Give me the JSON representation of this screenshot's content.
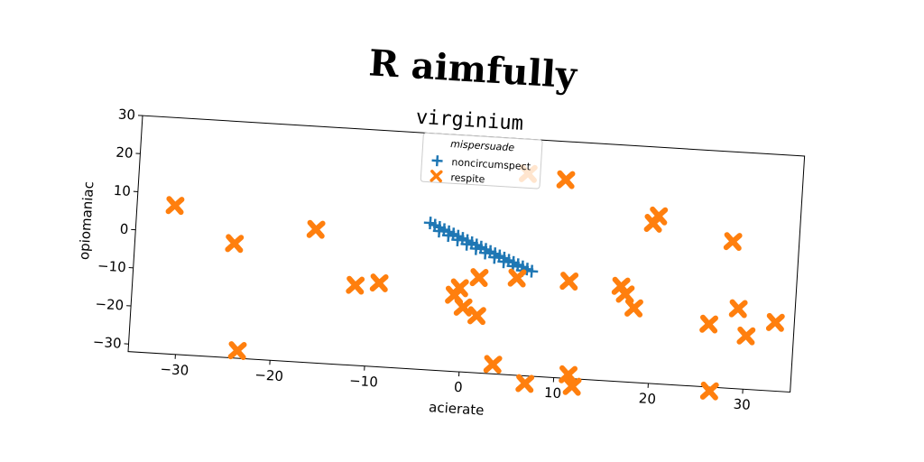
{
  "chart_data": {
    "type": "scatter",
    "suptitle": "R aimfully",
    "title": "virginium",
    "xlabel": "acierate",
    "ylabel": "opiomaniac",
    "xlim": [
      -35,
      35
    ],
    "ylim": [
      -32,
      30
    ],
    "xticks": [
      -30,
      -20,
      -10,
      0,
      10,
      20,
      30
    ],
    "yticks": [
      -30,
      -20,
      -10,
      0,
      10,
      20,
      30
    ],
    "grid": false,
    "legend": {
      "title": "mispersuade",
      "placement": "upper center"
    },
    "series": [
      {
        "name": "noncircumspect",
        "marker": "plus",
        "color": "#1f77b4",
        "x": [
          -4.0,
          -3.5,
          -3.0,
          -2.5,
          -2.0,
          -1.5,
          -1.0,
          -0.5,
          0.0,
          0.5,
          1.0,
          1.5,
          2.0,
          2.5,
          3.0,
          3.5,
          4.0,
          4.5,
          5.0,
          5.5,
          6.0,
          6.5,
          7.0,
          -3.0,
          -2.0,
          -1.0,
          0.0,
          1.0,
          2.0,
          3.0,
          4.0,
          5.0,
          6.0
        ],
        "y": [
          6.5,
          6.0,
          5.5,
          5.0,
          4.5,
          4.0,
          3.5,
          3.0,
          2.5,
          2.0,
          1.5,
          1.0,
          0.5,
          0.0,
          -0.5,
          -1.0,
          -1.5,
          -2.0,
          -2.5,
          -3.0,
          -3.5,
          -4.0,
          -4.5,
          4.5,
          3.5,
          2.5,
          1.5,
          0.5,
          -0.5,
          -1.5,
          -2.5,
          -3.5,
          -4.5
        ]
      },
      {
        "name": "respite",
        "marker": "X",
        "color": "#ff7f0e",
        "x": [
          -31,
          -24.5,
          -23.5,
          -16,
          -11.5,
          -9,
          -1,
          -0.5,
          0,
          1.5,
          1.5,
          3.5,
          5.5,
          6,
          7,
          10,
          11,
          11.5,
          12,
          16.5,
          17,
          18,
          19.5,
          20,
          26,
          26.5,
          28,
          29,
          30,
          33
        ],
        "y": [
          7,
          -2,
          -30,
          3,
          -11,
          -10,
          -12,
          -10,
          -15,
          -17,
          -7,
          -29.5,
          -6.5,
          21,
          -34,
          20,
          -6.5,
          -31,
          -34,
          -7,
          -9,
          -12.5,
          10,
          12,
          -15.5,
          -33,
          6.5,
          -11,
          -18,
          -14
        ]
      }
    ]
  }
}
